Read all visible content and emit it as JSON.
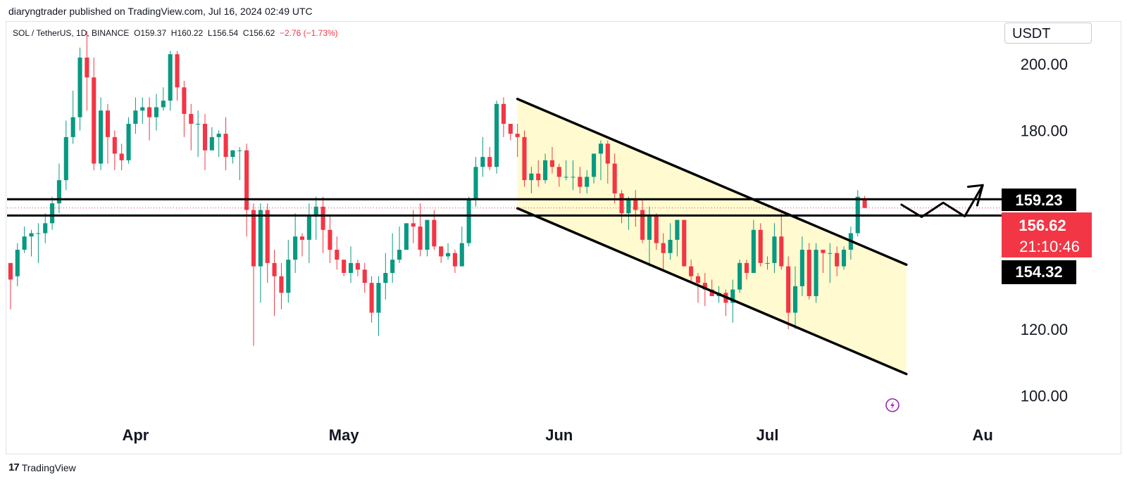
{
  "header": {
    "published_line": "diaryngtrader published on TradingView.com, Jul 16, 2024 02:49 UTC"
  },
  "symbol": {
    "name": "SOL / TetherUS, 1D, BINANCE",
    "open_label": "O",
    "open": "159.37",
    "high_label": "H",
    "high": "160.22",
    "low_label": "L",
    "low": "156.54",
    "close_label": "C",
    "close": "156.62",
    "change": "−2.76 (−1.73%)"
  },
  "currency": "USDT",
  "price_labels": {
    "upper": "159.23",
    "current": "156.62",
    "countdown": "21:10:46",
    "lower": "154.32"
  },
  "footer": {
    "logo_mark": "17",
    "logo_text": "TradingView"
  },
  "colors": {
    "up": "#089981",
    "down": "#f23645",
    "channel_fill": "#fff9c4",
    "line": "#000000",
    "label_bg": "#000000"
  },
  "chart_data": {
    "type": "candlestick",
    "y_ticks": [
      "200.00",
      "180.00",
      "120.00",
      "100.00"
    ],
    "ylim": [
      92,
      213
    ],
    "x_ticks": [
      {
        "label": "Apr",
        "x": 18
      },
      {
        "label": "May",
        "x": 48
      },
      {
        "label": "Jun",
        "x": 79
      },
      {
        "label": "Jul",
        "x": 109
      },
      {
        "label": "Au",
        "x": 140
      }
    ],
    "xlim": [
      -0.5,
      141.5
    ],
    "candles": [
      [
        140,
        135,
        139,
        126
      ],
      [
        136,
        144,
        146,
        133
      ],
      [
        144,
        148,
        151,
        143
      ],
      [
        148,
        149,
        150,
        142
      ],
      [
        149,
        149,
        152,
        140
      ],
      [
        149,
        152,
        155,
        146
      ],
      [
        152,
        158,
        160,
        150
      ],
      [
        158,
        165,
        170,
        155
      ],
      [
        165,
        178,
        183,
        162
      ],
      [
        178,
        184,
        192,
        176
      ],
      [
        184,
        202,
        205,
        180
      ],
      [
        202,
        196,
        210,
        186
      ],
      [
        196,
        170,
        202,
        168
      ],
      [
        170,
        186,
        190,
        168
      ],
      [
        186,
        178,
        188,
        170
      ],
      [
        178,
        173,
        180,
        168
      ],
      [
        173,
        171,
        176,
        168
      ],
      [
        171,
        182,
        184,
        170
      ],
      [
        182,
        186,
        190,
        179
      ],
      [
        186,
        187,
        190,
        182
      ],
      [
        187,
        184,
        190,
        177
      ],
      [
        184,
        187,
        191,
        180
      ],
      [
        187,
        189,
        193,
        186
      ],
      [
        189,
        203,
        204,
        186
      ],
      [
        203,
        193,
        204,
        189
      ],
      [
        193,
        185,
        195,
        178
      ],
      [
        185,
        182,
        188,
        174
      ],
      [
        182,
        182,
        186,
        172
      ],
      [
        182,
        174,
        185,
        168
      ],
      [
        174,
        178,
        181,
        176
      ],
      [
        178,
        179,
        180,
        172
      ],
      [
        179,
        172,
        184,
        168
      ],
      [
        172,
        174,
        174,
        170
      ],
      [
        174,
        174,
        175,
        165
      ],
      [
        174,
        156,
        176,
        148
      ],
      [
        156,
        139,
        158,
        115
      ],
      [
        139,
        156,
        158,
        128
      ],
      [
        156,
        140,
        158,
        134
      ],
      [
        140,
        136,
        144,
        124
      ],
      [
        136,
        131,
        140,
        126
      ],
      [
        131,
        141,
        147,
        128
      ],
      [
        141,
        148,
        155,
        137
      ],
      [
        148,
        147,
        149,
        142
      ],
      [
        147,
        154,
        158,
        140
      ],
      [
        154,
        157,
        160,
        147
      ],
      [
        157,
        150,
        160,
        143
      ],
      [
        150,
        144,
        154,
        140
      ],
      [
        144,
        141,
        148,
        138
      ],
      [
        141,
        137,
        140,
        136
      ],
      [
        137,
        140,
        145,
        134
      ],
      [
        140,
        138,
        141,
        136
      ],
      [
        138,
        134,
        140,
        131
      ],
      [
        134,
        125,
        136,
        122
      ],
      [
        125,
        134,
        136,
        118
      ],
      [
        134,
        137,
        143,
        129
      ],
      [
        137,
        141,
        149,
        134
      ],
      [
        141,
        144,
        151,
        140
      ],
      [
        144,
        152,
        152,
        144
      ],
      [
        152,
        151,
        156,
        146
      ],
      [
        151,
        144,
        158,
        142
      ],
      [
        144,
        153,
        153,
        142
      ],
      [
        153,
        145,
        156,
        144
      ],
      [
        145,
        142,
        145,
        140
      ],
      [
        142,
        143,
        146,
        141
      ],
      [
        143,
        139,
        144,
        137
      ],
      [
        139,
        146,
        151,
        139
      ],
      [
        146,
        159,
        160,
        145
      ],
      [
        159,
        169,
        172,
        157
      ],
      [
        169,
        172,
        178,
        166
      ],
      [
        172,
        169,
        175,
        168
      ],
      [
        169,
        188,
        189,
        167
      ],
      [
        188,
        182,
        190,
        178
      ],
      [
        182,
        179,
        180,
        177
      ],
      [
        179,
        178,
        182,
        172
      ],
      [
        178,
        165,
        180,
        163
      ],
      [
        165,
        167,
        169,
        161
      ],
      [
        167,
        165,
        171,
        163
      ],
      [
        165,
        171,
        173,
        164
      ],
      [
        171,
        169,
        175,
        167
      ],
      [
        169,
        166,
        170,
        163
      ],
      [
        166,
        166,
        171,
        165
      ],
      [
        166,
        166,
        171,
        162
      ],
      [
        166,
        163,
        169,
        161
      ],
      [
        163,
        166,
        168,
        161
      ],
      [
        166,
        173,
        173,
        164
      ],
      [
        173,
        176,
        177,
        165
      ],
      [
        176,
        170,
        177,
        164
      ],
      [
        170,
        161,
        173,
        158
      ],
      [
        161,
        155,
        162,
        152
      ],
      [
        155,
        159,
        160,
        150
      ],
      [
        159,
        156,
        162,
        151
      ],
      [
        156,
        147,
        159,
        146
      ],
      [
        147,
        154,
        157,
        139
      ],
      [
        154,
        146,
        155,
        144
      ],
      [
        146,
        143,
        149,
        138
      ],
      [
        143,
        147,
        152,
        141
      ],
      [
        147,
        153,
        153,
        142
      ],
      [
        153,
        139,
        153,
        139
      ],
      [
        139,
        136,
        141,
        134
      ],
      [
        136,
        134,
        137,
        128
      ],
      [
        134,
        132,
        137,
        127
      ],
      [
        132,
        130,
        135,
        130
      ],
      [
        130,
        131,
        133,
        128
      ],
      [
        131,
        128,
        132,
        124
      ],
      [
        128,
        132,
        135,
        122
      ],
      [
        132,
        140,
        141,
        131
      ],
      [
        140,
        137,
        141,
        135
      ],
      [
        137,
        150,
        153,
        137
      ],
      [
        150,
        140,
        152,
        139
      ],
      [
        140,
        140,
        142,
        138
      ],
      [
        140,
        148,
        152,
        137
      ],
      [
        148,
        139,
        155,
        138
      ],
      [
        139,
        125,
        142,
        120
      ],
      [
        125,
        133,
        139,
        120
      ],
      [
        133,
        144,
        148,
        130
      ],
      [
        144,
        130,
        146,
        129
      ],
      [
        130,
        144,
        146,
        128
      ],
      [
        144,
        143,
        144,
        137
      ],
      [
        143,
        143,
        146,
        134
      ],
      [
        143,
        139,
        145,
        136
      ],
      [
        139,
        144,
        145,
        138
      ],
      [
        144,
        149,
        151,
        141
      ],
      [
        149,
        160,
        162,
        148
      ],
      [
        159.37,
        156.62,
        160.22,
        156.54
      ]
    ],
    "channel": {
      "upper_line": {
        "x1": 73,
        "y1": 189.5,
        "x2": 129,
        "y2": 139.5
      },
      "lower_line": {
        "x1": 73,
        "y1": 156.5,
        "x2": 129,
        "y2": 106.5
      },
      "shade": [
        [
          73,
          189.5
        ],
        [
          129,
          139.5
        ],
        [
          129,
          106.5
        ],
        [
          73,
          156.5
        ]
      ]
    },
    "levels": [
      159.23,
      154.32
    ],
    "forecast_path": [
      [
        128.3,
        157.6
      ],
      [
        131.2,
        153.9
      ],
      [
        134.3,
        158.2
      ],
      [
        137.4,
        154.1
      ],
      [
        140.0,
        163.5
      ]
    ],
    "arrow_head": [
      [
        137.9,
        163.0
      ],
      [
        140.0,
        163.5
      ],
      [
        139.2,
        157.4
      ]
    ]
  }
}
